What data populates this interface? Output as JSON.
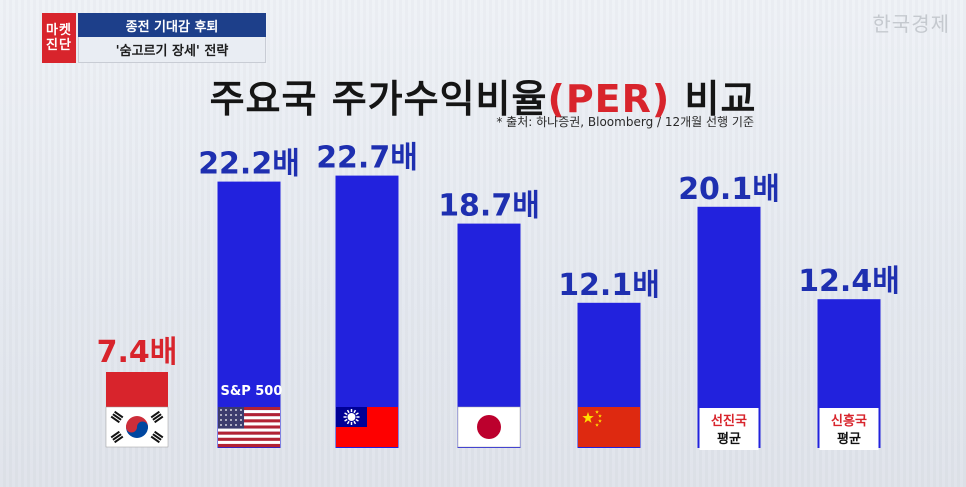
{
  "header": {
    "badge_line1": "마켓",
    "badge_line2": "진단",
    "headline_top": "종전 기대감 후퇴",
    "headline_bottom": "'숨고르기 장세' 전략",
    "logo": "한국경제"
  },
  "chart_data": {
    "type": "bar",
    "title_main": "주요국 주가수익비율",
    "title_accent": "(PER)",
    "title_end": " 비교",
    "source": "* 출처: 하나증권, Bloomberg / 12개월 선행 기준",
    "categories": [
      "한국",
      "S&P 500",
      "대만",
      "일본",
      "중국",
      "선진국 평균",
      "신흥국 평균"
    ],
    "values": [
      7.4,
      22.2,
      22.7,
      18.7,
      12.1,
      20.1,
      12.4
    ],
    "value_labels": [
      "7.4배",
      "22.2배",
      "22.7배",
      "18.7배",
      "12.1배",
      "20.1배",
      "12.4배"
    ],
    "category_labels": [
      "",
      "S&P 500",
      "",
      "",
      "",
      "선진국\n평균",
      "신흥국\n평균"
    ],
    "highlight_index": 0,
    "colors": {
      "bar": "#2222dd",
      "highlight_bar": "#d8242c",
      "label": "#1e2fb0",
      "highlight_label": "#d8242c"
    },
    "icons": [
      "korea-flag-icon",
      "usa-flag-icon",
      "taiwan-flag-icon",
      "japan-flag-icon",
      "china-flag-icon",
      "",
      ""
    ]
  }
}
